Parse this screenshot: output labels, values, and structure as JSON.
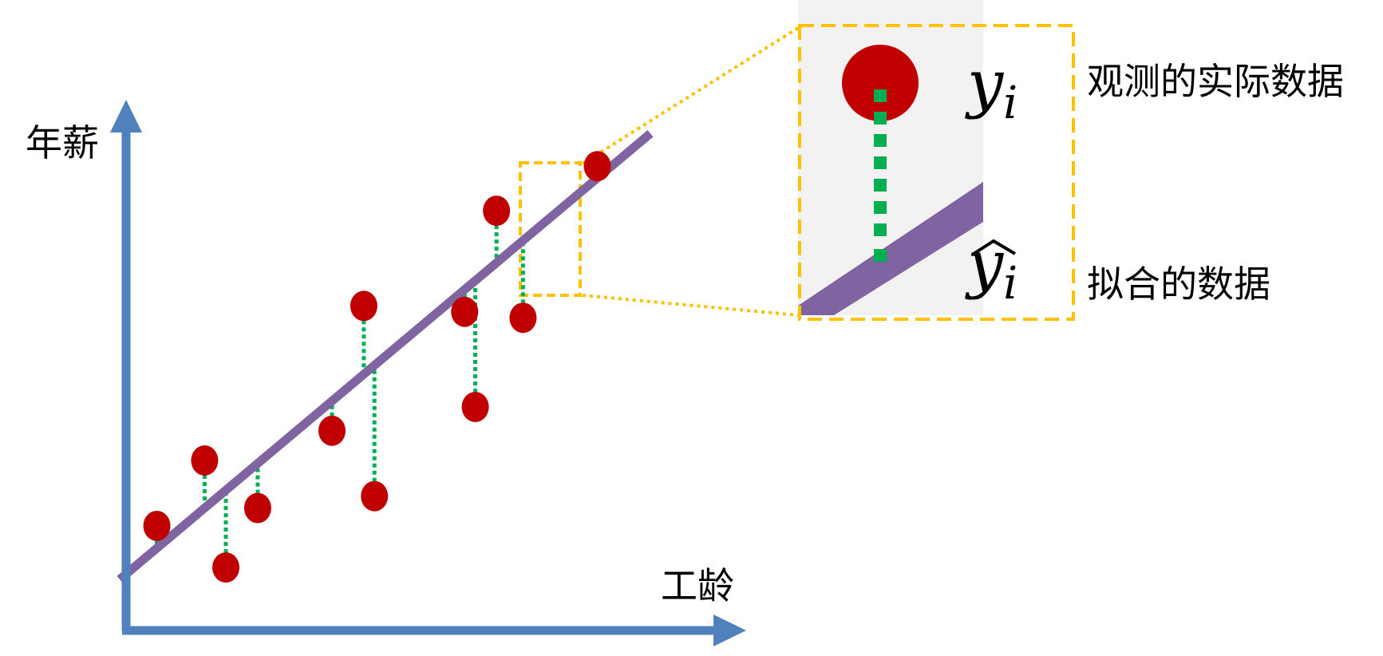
{
  "labels": {
    "y_axis": "年薪",
    "x_axis": "工龄",
    "observed_symbol": "y",
    "observed_subscript": "i",
    "fitted_symbol": "y",
    "fitted_subscript": "i",
    "observed_desc": "观测的实际数据",
    "fitted_desc": "拟合的数据"
  },
  "colors": {
    "axis": "#4f81bd",
    "fit_line": "#8064a2",
    "point": "#c00000",
    "residual": "#00b050",
    "highlight": "#ffc000",
    "zoom_bg": "#f2f2f2"
  },
  "fit_line": {
    "x1": 0.0,
    "y1": 0.0,
    "x2": 10.0,
    "y2": 7.5
  },
  "points": [
    {
      "x": 0.7,
      "observed": 0.9,
      "fitted": 0.52
    },
    {
      "x": 1.6,
      "observed": 2.0,
      "fitted": 1.2
    },
    {
      "x": 2.0,
      "observed": 0.2,
      "fitted": 1.5
    },
    {
      "x": 2.6,
      "observed": 1.2,
      "fitted": 1.95
    },
    {
      "x": 4.0,
      "observed": 2.5,
      "fitted": 3.0
    },
    {
      "x": 4.6,
      "observed": 4.6,
      "fitted": 3.45
    },
    {
      "x": 4.8,
      "observed": 1.4,
      "fitted": 3.6
    },
    {
      "x": 6.5,
      "observed": 4.5,
      "fitted": 4.87
    },
    {
      "x": 6.7,
      "observed": 2.9,
      "fitted": 5.02
    },
    {
      "x": 7.1,
      "observed": 6.2,
      "fitted": 5.32
    },
    {
      "x": 7.6,
      "observed": 4.4,
      "fitted": 5.7
    },
    {
      "x": 9.0,
      "observed": 6.95,
      "fitted": 6.75
    }
  ],
  "highlight_index": 9
}
